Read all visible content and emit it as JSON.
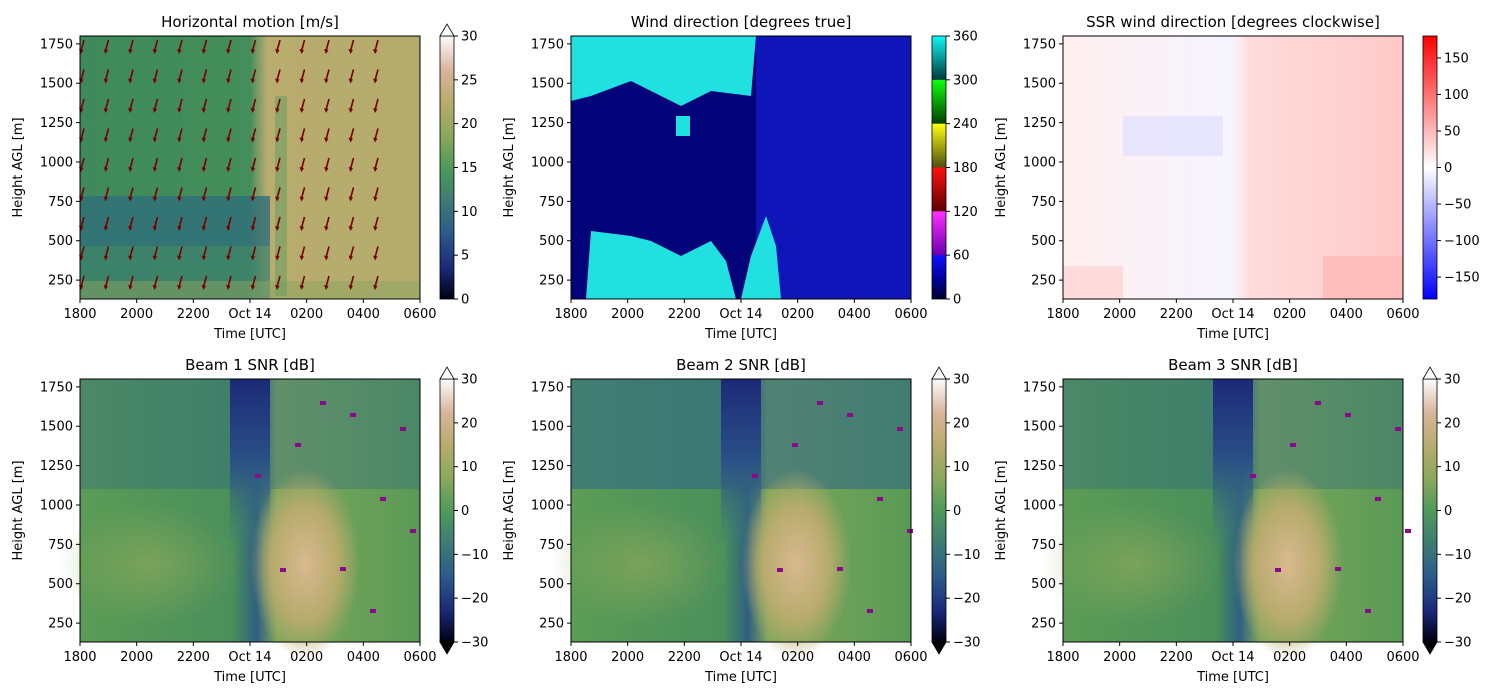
{
  "chart_data": [
    {
      "type": "heatmap",
      "title": "Horizontal motion [m/s]",
      "xlabel": "Time [UTC]",
      "ylabel": "Height AGL [m]",
      "xticks": [
        "1800",
        "2000",
        "2200",
        "Oct 14",
        "0200",
        "0400",
        "0600"
      ],
      "yticks": [
        "250",
        "500",
        "750",
        "1000",
        "1250",
        "1500",
        "1750"
      ],
      "ylim": [
        130,
        1800
      ],
      "colorbar": {
        "ticks": [
          "0",
          "5",
          "10",
          "15",
          "20",
          "25",
          "30"
        ],
        "range": [
          0,
          30
        ],
        "extend": "max",
        "colormap": "gist_earth"
      },
      "overlay": "wind-direction arrows (dark red)"
    },
    {
      "type": "heatmap",
      "title": "Wind direction [degrees true]",
      "xlabel": "Time [UTC]",
      "ylabel": "Height AGL [m]",
      "xticks": [
        "1800",
        "2000",
        "2200",
        "Oct 14",
        "0200",
        "0400",
        "0600"
      ],
      "yticks": [
        "250",
        "500",
        "750",
        "1000",
        "1250",
        "1500",
        "1750"
      ],
      "ylim": [
        130,
        1800
      ],
      "colorbar": {
        "ticks": [
          "0",
          "60",
          "120",
          "180",
          "240",
          "300",
          "360"
        ],
        "range": [
          0,
          360
        ],
        "extend": "neither",
        "colormap": "cyclic-segmented"
      }
    },
    {
      "type": "heatmap",
      "title": "SSR wind direction [degrees clockwise]",
      "xlabel": "Time [UTC]",
      "ylabel": "Height AGL [m]",
      "xticks": [
        "1800",
        "2000",
        "2200",
        "Oct 14",
        "0200",
        "0400",
        "0600"
      ],
      "yticks": [
        "250",
        "500",
        "750",
        "1000",
        "1250",
        "1500",
        "1750"
      ],
      "ylim": [
        130,
        1800
      ],
      "colorbar": {
        "ticks": [
          "150",
          "100",
          "50",
          "0",
          "−50",
          "−100",
          "−150"
        ],
        "range": [
          -180,
          180
        ],
        "extend": "neither",
        "colormap": "bwr"
      }
    },
    {
      "type": "heatmap",
      "title": "Beam 1 SNR [dB]",
      "xlabel": "Time [UTC]",
      "ylabel": "Height AGL [m]",
      "xticks": [
        "1800",
        "2000",
        "2200",
        "Oct 14",
        "0200",
        "0400",
        "0600"
      ],
      "yticks": [
        "250",
        "500",
        "750",
        "1000",
        "1250",
        "1500",
        "1750"
      ],
      "ylim": [
        130,
        1800
      ],
      "colorbar": {
        "ticks": [
          "30",
          "20",
          "10",
          "0",
          "−10",
          "−20",
          "−30"
        ],
        "range": [
          -30,
          30
        ],
        "extend": "both",
        "colormap": "gist_earth"
      }
    },
    {
      "type": "heatmap",
      "title": "Beam 2 SNR [dB]",
      "xlabel": "Time [UTC]",
      "ylabel": "Height AGL [m]",
      "xticks": [
        "1800",
        "2000",
        "2200",
        "Oct 14",
        "0200",
        "0400",
        "0600"
      ],
      "yticks": [
        "250",
        "500",
        "750",
        "1000",
        "1250",
        "1500",
        "1750"
      ],
      "ylim": [
        130,
        1800
      ],
      "colorbar": {
        "ticks": [
          "30",
          "20",
          "10",
          "0",
          "−10",
          "−20",
          "−30"
        ],
        "range": [
          -30,
          30
        ],
        "extend": "both",
        "colormap": "gist_earth"
      }
    },
    {
      "type": "heatmap",
      "title": "Beam 3 SNR [dB]",
      "xlabel": "Time [UTC]",
      "ylabel": "Height AGL [m]",
      "xticks": [
        "1800",
        "2000",
        "2200",
        "Oct 14",
        "0200",
        "0400",
        "0600"
      ],
      "yticks": [
        "250",
        "500",
        "750",
        "1000",
        "1250",
        "1500",
        "1750"
      ],
      "ylim": [
        130,
        1800
      ],
      "colorbar": {
        "ticks": [
          "30",
          "20",
          "10",
          "0",
          "−10",
          "−20",
          "−30"
        ],
        "range": [
          -30,
          30
        ],
        "extend": "both",
        "colormap": "gist_earth"
      }
    }
  ]
}
